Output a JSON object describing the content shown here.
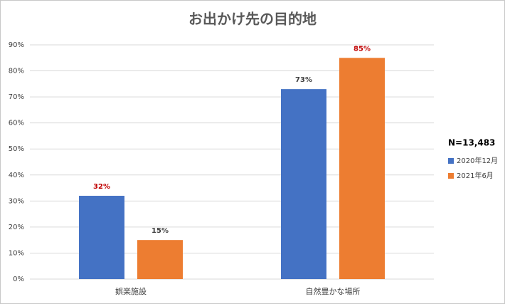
{
  "chart_data": {
    "type": "bar",
    "title": "お出かけ先の目的地",
    "categories": [
      "娯楽施設",
      "自然豊かな場所"
    ],
    "series": [
      {
        "name": "2020年12月",
        "color": "#4472c4",
        "values": [
          32,
          73
        ],
        "value_labels": [
          "32%",
          "73%"
        ],
        "label_colors": [
          "#c00000",
          "#404040"
        ]
      },
      {
        "name": "2021年6月",
        "color": "#ed7d31",
        "values": [
          15,
          85
        ],
        "value_labels": [
          "15%",
          "85%"
        ],
        "label_colors": [
          "#404040",
          "#c00000"
        ]
      }
    ],
    "ylim": [
      0,
      90
    ],
    "yticks": [
      {
        "value": 0,
        "label": "0%"
      },
      {
        "value": 10,
        "label": "10%"
      },
      {
        "value": 20,
        "label": "20%"
      },
      {
        "value": 30,
        "label": "30%"
      },
      {
        "value": 40,
        "label": "40%"
      },
      {
        "value": 50,
        "label": "50%"
      },
      {
        "value": 60,
        "label": "60%"
      },
      {
        "value": 70,
        "label": "70%"
      },
      {
        "value": 80,
        "label": "80%"
      },
      {
        "value": 90,
        "label": "90%"
      }
    ],
    "grid": true,
    "annotation": "N=13,483",
    "legend": "right"
  }
}
